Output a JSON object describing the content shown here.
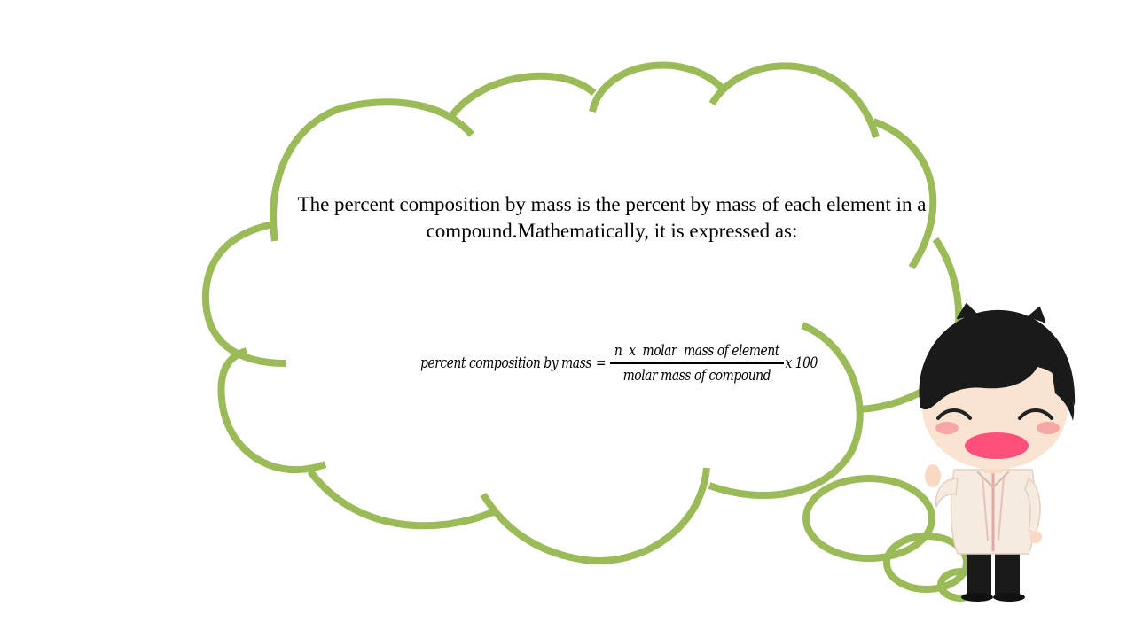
{
  "slide": {
    "definition_text": "The percent composition by mass is the percent by mass of each element in a compound.Mathematically, it is expressed as:",
    "formula": {
      "lhs": "percent composition by mass",
      "equals": "=",
      "numerator": "n  x  molar  mass of element",
      "denominator": "molar mass of compound",
      "multiplier": "x 100"
    }
  },
  "colors": {
    "cloud_outline": "#9bbb59",
    "text": "#000000",
    "background": "#ffffff"
  },
  "icons": {
    "character": "waving-boy-in-barong-icon"
  }
}
